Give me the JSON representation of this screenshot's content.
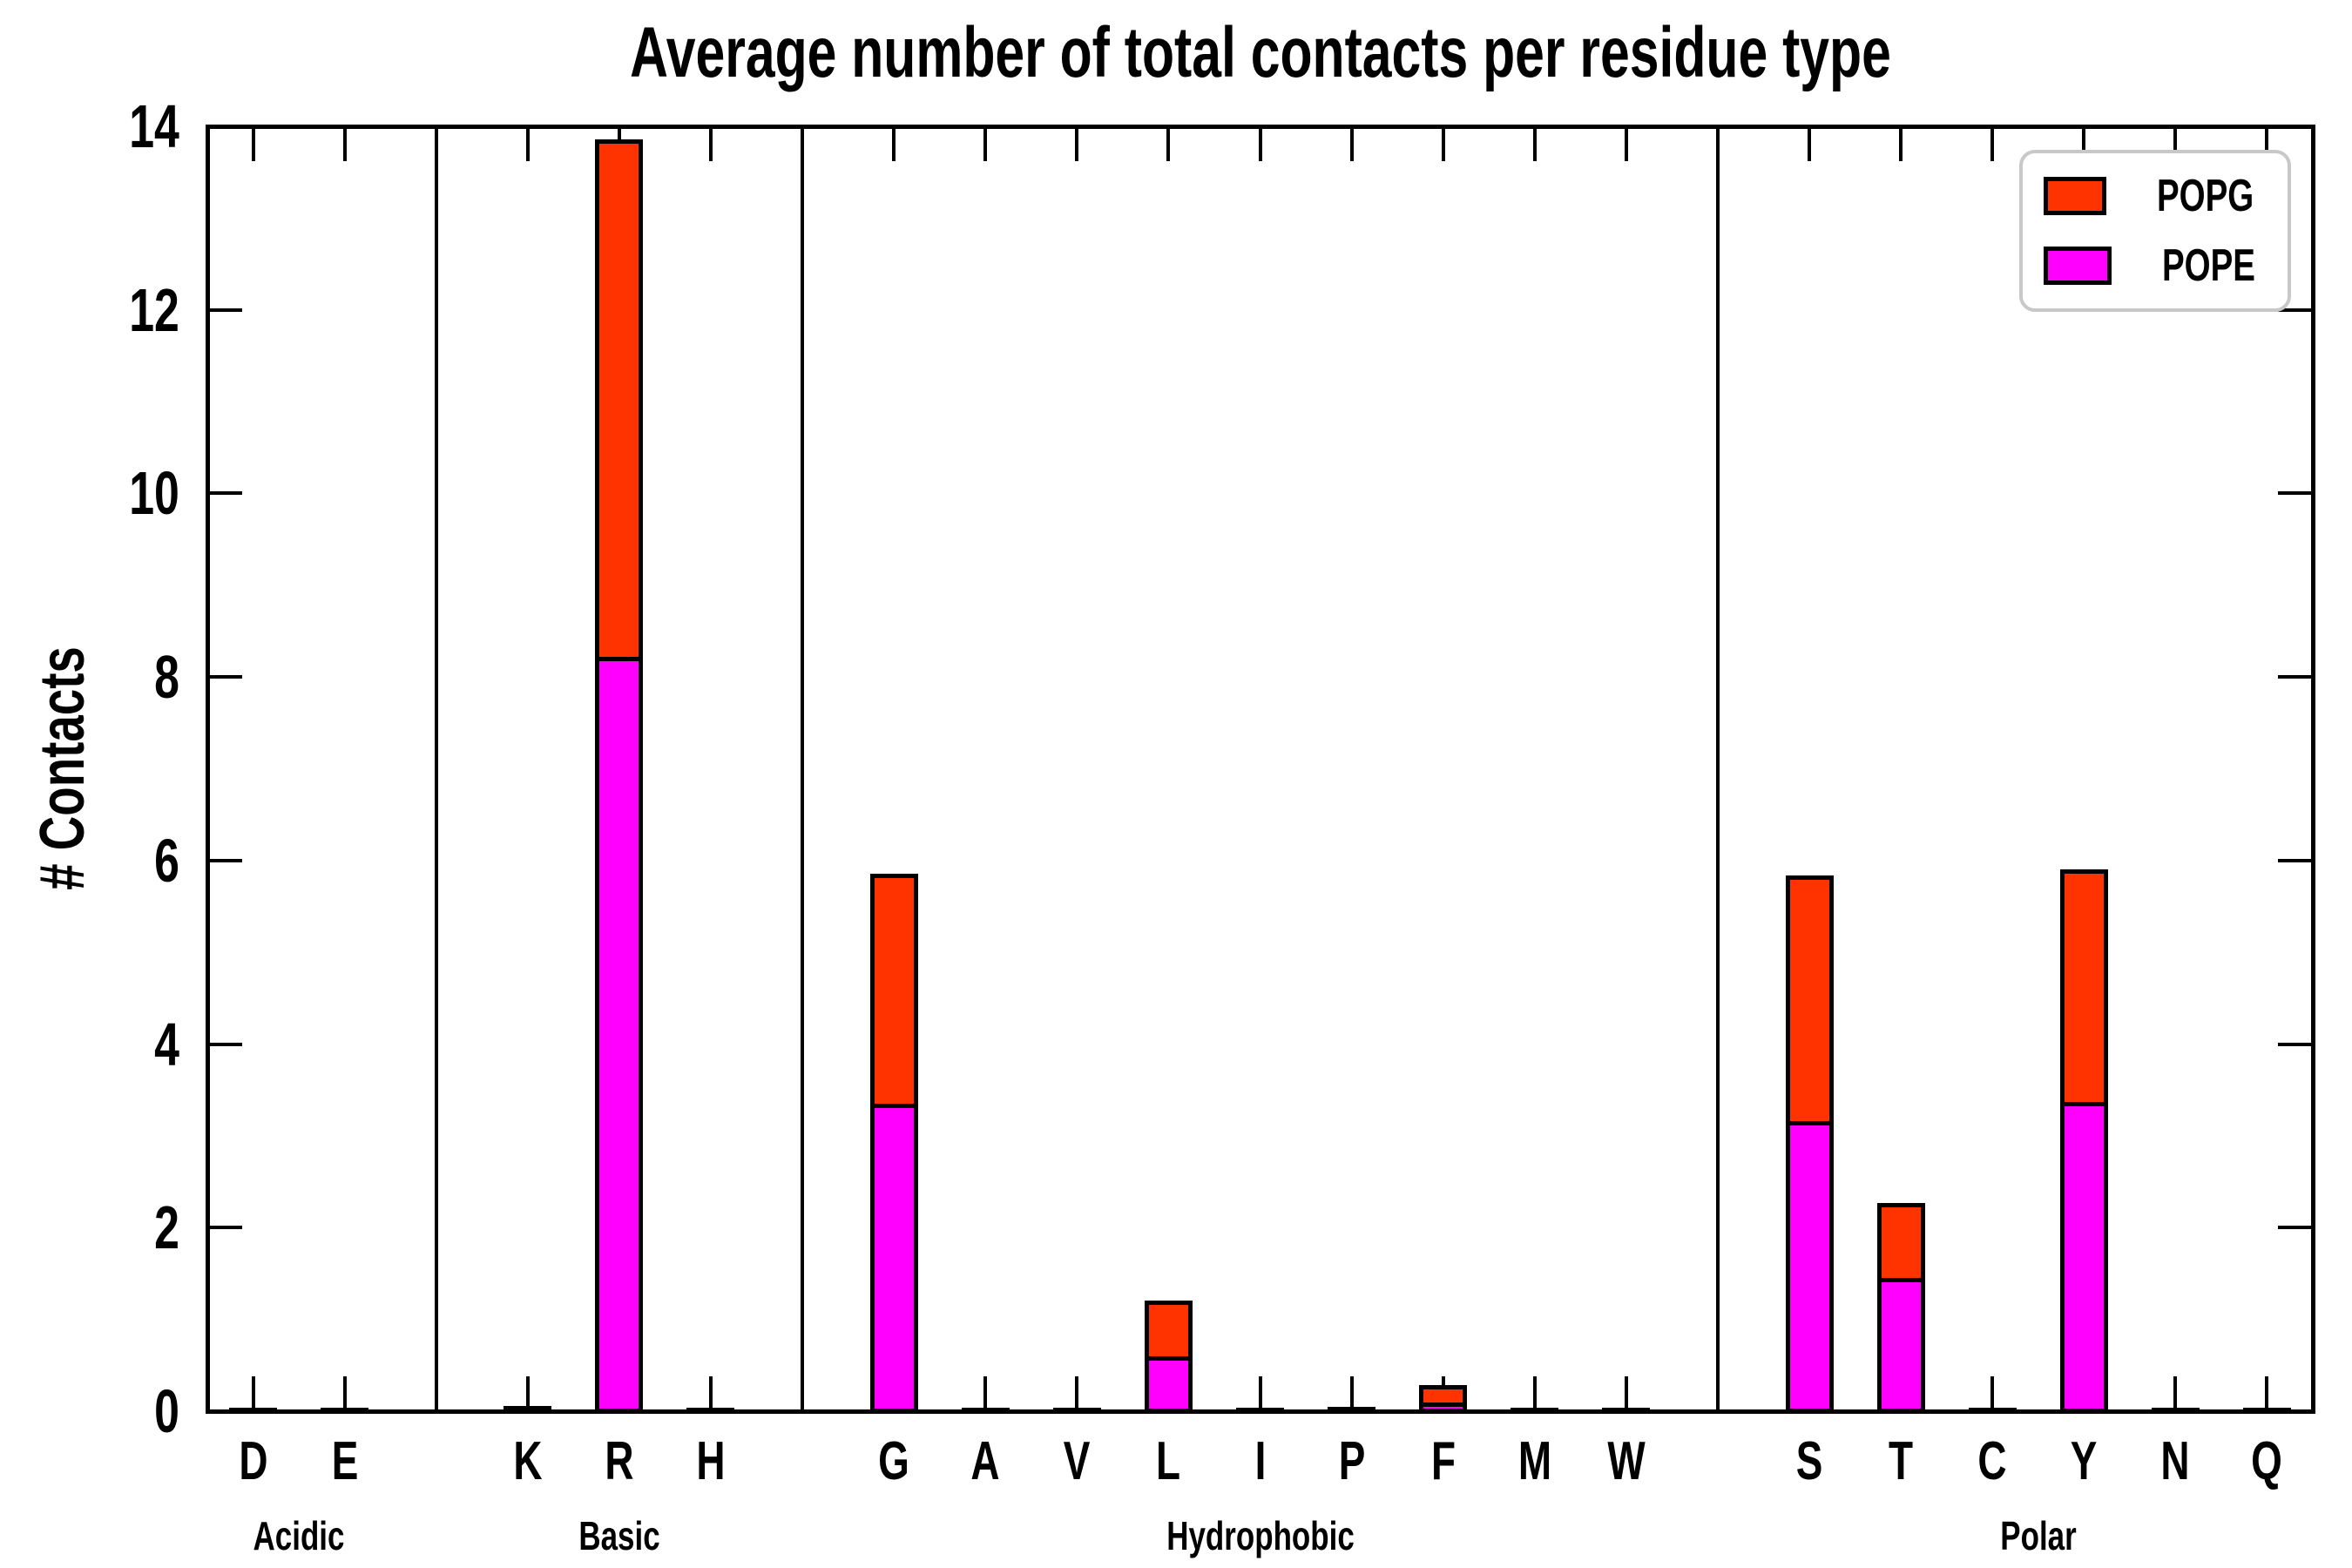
{
  "chart_data": {
    "type": "bar",
    "stacked": true,
    "title": "Average number of total contacts per residue type",
    "xlabel": "",
    "ylabel": "# Contacts",
    "ylim": [
      0,
      14
    ],
    "yticks": [
      0,
      2,
      4,
      6,
      8,
      10,
      12,
      14
    ],
    "grid": false,
    "legend_position": "upper right",
    "legend_border_color": "#c8c8c8",
    "bar_edge_color": "#000000",
    "categories": [
      "D",
      "E",
      "K",
      "R",
      "H",
      "G",
      "A",
      "V",
      "L",
      "I",
      "P",
      "F",
      "M",
      "W",
      "S",
      "T",
      "C",
      "Y",
      "N",
      "Q"
    ],
    "groups": [
      {
        "label": "Acidic",
        "categories": [
          "D",
          "E"
        ]
      },
      {
        "label": "Basic",
        "categories": [
          "K",
          "R",
          "H"
        ]
      },
      {
        "label": "Hydrophobic",
        "categories": [
          "G",
          "A",
          "V",
          "L",
          "I",
          "P",
          "F",
          "M",
          "W"
        ]
      },
      {
        "label": "Polar",
        "categories": [
          "S",
          "T",
          "C",
          "Y",
          "N",
          "Q"
        ]
      }
    ],
    "series": [
      {
        "name": "POPG",
        "color": "#FF3300",
        "values": [
          0.01,
          0.01,
          0.03,
          5.64,
          0.01,
          2.51,
          0.01,
          0.01,
          0.61,
          0.01,
          0.02,
          0.19,
          0.01,
          0.02,
          2.68,
          0.82,
          0.01,
          2.53,
          0.01,
          0.02
        ]
      },
      {
        "name": "POPE",
        "color": "#FF00FF",
        "values": [
          0.01,
          0.01,
          0.02,
          8.24,
          0.01,
          3.37,
          0.01,
          0.01,
          0.62,
          0.01,
          0.02,
          0.11,
          0.01,
          0.01,
          3.18,
          1.47,
          0.01,
          3.39,
          0.01,
          0.01
        ]
      }
    ]
  }
}
